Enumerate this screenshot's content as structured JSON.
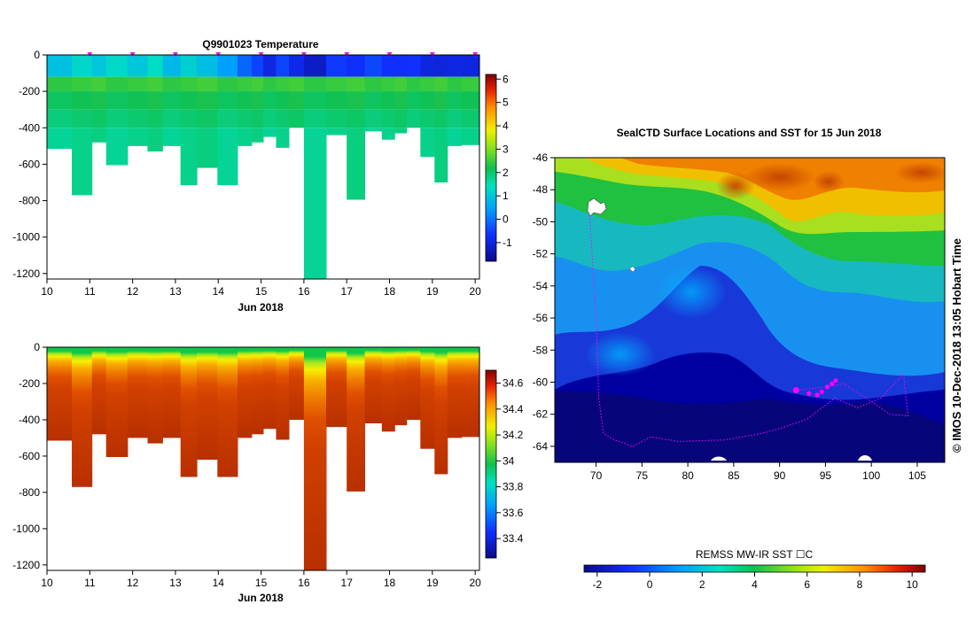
{
  "title_top": "Q9901023  Temperature",
  "map_title": "SealCTD Surface Locations and SST for 15 Jun 2018",
  "side_credit": "© IMOS 10-Dec-2018 13:05 Hobart Time",
  "sst_label": "REMSS MW-IR SST ☐C",
  "chart_data": [
    {
      "type": "heatmap",
      "name": "temperature-section",
      "title": "Q9901023  Temperature",
      "xlabel": "Jun 2018",
      "xlim": [
        10,
        20.1
      ],
      "x_ticks": [
        "10",
        "11",
        "12",
        "13",
        "14",
        "15",
        "16",
        "17",
        "18",
        "19",
        "20"
      ],
      "ylim": [
        -1230,
        0
      ],
      "y_ticks": [
        "0",
        "-200",
        "-400",
        "-600",
        "-800",
        "-1000",
        "-1200"
      ],
      "y_tick_values": [
        0,
        -200,
        -400,
        -600,
        -800,
        -1000,
        -1200
      ],
      "colorbar": {
        "ticks": [
          "-1",
          "0",
          "1",
          "2",
          "3",
          "4",
          "5",
          "6"
        ],
        "range": [
          -1.8,
          6.2
        ]
      },
      "surface_markers_day": [
        11,
        12,
        13,
        14,
        15,
        16,
        17,
        18,
        19,
        20
      ],
      "profiles": [
        {
          "t0": 10.0,
          "t1": 10.58,
          "depth": -515,
          "surface": 0.4
        },
        {
          "t0": 10.58,
          "t1": 11.05,
          "depth": -770,
          "surface": 0.6
        },
        {
          "t0": 11.05,
          "t1": 11.38,
          "depth": -480,
          "surface": 0.3
        },
        {
          "t0": 11.38,
          "t1": 11.88,
          "depth": -605,
          "surface": 0.7
        },
        {
          "t0": 11.88,
          "t1": 12.35,
          "depth": -500,
          "surface": 0.4
        },
        {
          "t0": 12.35,
          "t1": 12.7,
          "depth": -530,
          "surface": 0.6
        },
        {
          "t0": 12.7,
          "t1": 13.12,
          "depth": -500,
          "surface": 0.3
        },
        {
          "t0": 13.12,
          "t1": 13.5,
          "depth": -715,
          "surface": 0.5
        },
        {
          "t0": 13.5,
          "t1": 13.98,
          "depth": -620,
          "surface": 0.2
        },
        {
          "t0": 13.98,
          "t1": 14.45,
          "depth": -715,
          "surface": 0.0
        },
        {
          "t0": 14.45,
          "t1": 14.78,
          "depth": -500,
          "surface": -0.6
        },
        {
          "t0": 14.78,
          "t1": 15.05,
          "depth": -480,
          "surface": -1.0
        },
        {
          "t0": 15.05,
          "t1": 15.35,
          "depth": -450,
          "surface": -1.2
        },
        {
          "t0": 15.35,
          "t1": 15.65,
          "depth": -510,
          "surface": -0.9
        },
        {
          "t0": 15.65,
          "t1": 16.0,
          "depth": -400,
          "surface": -1.3
        },
        {
          "t0": 16.0,
          "t1": 16.52,
          "depth": -1230,
          "surface": -1.4
        },
        {
          "t0": 16.52,
          "t1": 17.0,
          "depth": -440,
          "surface": -1.0
        },
        {
          "t0": 17.0,
          "t1": 17.42,
          "depth": -795,
          "surface": -1.2
        },
        {
          "t0": 17.42,
          "t1": 17.82,
          "depth": -420,
          "surface": -0.8
        },
        {
          "t0": 17.82,
          "t1": 18.12,
          "depth": -465,
          "surface": -1.1
        },
        {
          "t0": 18.12,
          "t1": 18.4,
          "depth": -430,
          "surface": -1.2
        },
        {
          "t0": 18.4,
          "t1": 18.72,
          "depth": -400,
          "surface": -1.0
        },
        {
          "t0": 18.72,
          "t1": 19.05,
          "depth": -560,
          "surface": -1.3
        },
        {
          "t0": 19.05,
          "t1": 19.35,
          "depth": -700,
          "surface": -1.4
        },
        {
          "t0": 19.35,
          "t1": 19.68,
          "depth": -500,
          "surface": -1.2
        },
        {
          "t0": 19.68,
          "t1": 20.08,
          "depth": -495,
          "surface": -1.3
        }
      ]
    },
    {
      "type": "heatmap",
      "name": "salinity-section",
      "title": "",
      "xlabel": "Jun 2018",
      "xlim": [
        10,
        20.1
      ],
      "x_ticks": [
        "10",
        "11",
        "12",
        "13",
        "14",
        "15",
        "16",
        "17",
        "18",
        "19",
        "20"
      ],
      "ylim": [
        -1230,
        0
      ],
      "y_ticks": [
        "0",
        "-200",
        "-400",
        "-600",
        "-800",
        "-1000",
        "-1200"
      ],
      "y_tick_values": [
        0,
        -200,
        -400,
        -600,
        -800,
        -1000,
        -1200
      ],
      "colorbar": {
        "ticks": [
          "33.4",
          "33.6",
          "33.8",
          "34",
          "34.2",
          "34.4",
          "34.6"
        ],
        "range": [
          33.25,
          34.7
        ]
      }
    },
    {
      "type": "heatmap",
      "name": "sst-map",
      "title": "SealCTD Surface Locations and SST for 15 Jun 2018",
      "xlim": [
        65.5,
        108
      ],
      "x_ticks": [
        "70",
        "75",
        "80",
        "85",
        "90",
        "95",
        "100",
        "105"
      ],
      "x_tick_values": [
        70,
        75,
        80,
        85,
        90,
        95,
        100,
        105
      ],
      "ylim": [
        -65,
        -46
      ],
      "y_ticks": [
        "-46",
        "-48",
        "-50",
        "-52",
        "-54",
        "-56",
        "-58",
        "-60",
        "-62",
        "-64"
      ],
      "y_tick_values": [
        -46,
        -48,
        -50,
        -52,
        -54,
        -56,
        -58,
        -60,
        -62,
        -64
      ],
      "colorbar": {
        "label": "REMSS MW-IR SST ☐C",
        "ticks": [
          "-2",
          "0",
          "2",
          "4",
          "6",
          "8",
          "10"
        ],
        "tick_values": [
          -2,
          0,
          2,
          4,
          6,
          8,
          10
        ],
        "range": [
          -2.5,
          10.5
        ]
      },
      "track": [
        [
          69.3,
          -49.6
        ],
        [
          70,
          -56
        ],
        [
          70.3,
          -61
        ],
        [
          70.8,
          -63.2
        ],
        [
          72,
          -63.6
        ],
        [
          74,
          -64
        ],
        [
          76,
          -63.4
        ],
        [
          79,
          -63.7
        ],
        [
          84,
          -63.6
        ],
        [
          88,
          -63.2
        ],
        [
          90,
          -62.9
        ],
        [
          93,
          -62.3
        ],
        [
          96,
          -61
        ],
        [
          98.5,
          -61.6
        ],
        [
          101,
          -61
        ],
        [
          102.5,
          -60.1
        ],
        [
          103.5,
          -59.5
        ],
        [
          104,
          -62.1
        ],
        [
          102,
          -62
        ],
        [
          100,
          -61.2
        ],
        [
          97,
          -60.1
        ],
        [
          95,
          -60.3
        ],
        [
          92,
          -60.5
        ]
      ],
      "surface_points": [
        [
          91.8,
          -60.5
        ],
        [
          93.2,
          -60.7
        ],
        [
          94.1,
          -60.8
        ],
        [
          94.6,
          -60.6
        ],
        [
          95.2,
          -60.3
        ],
        [
          95.7,
          -60.1
        ],
        [
          96.1,
          -59.9
        ]
      ]
    }
  ]
}
